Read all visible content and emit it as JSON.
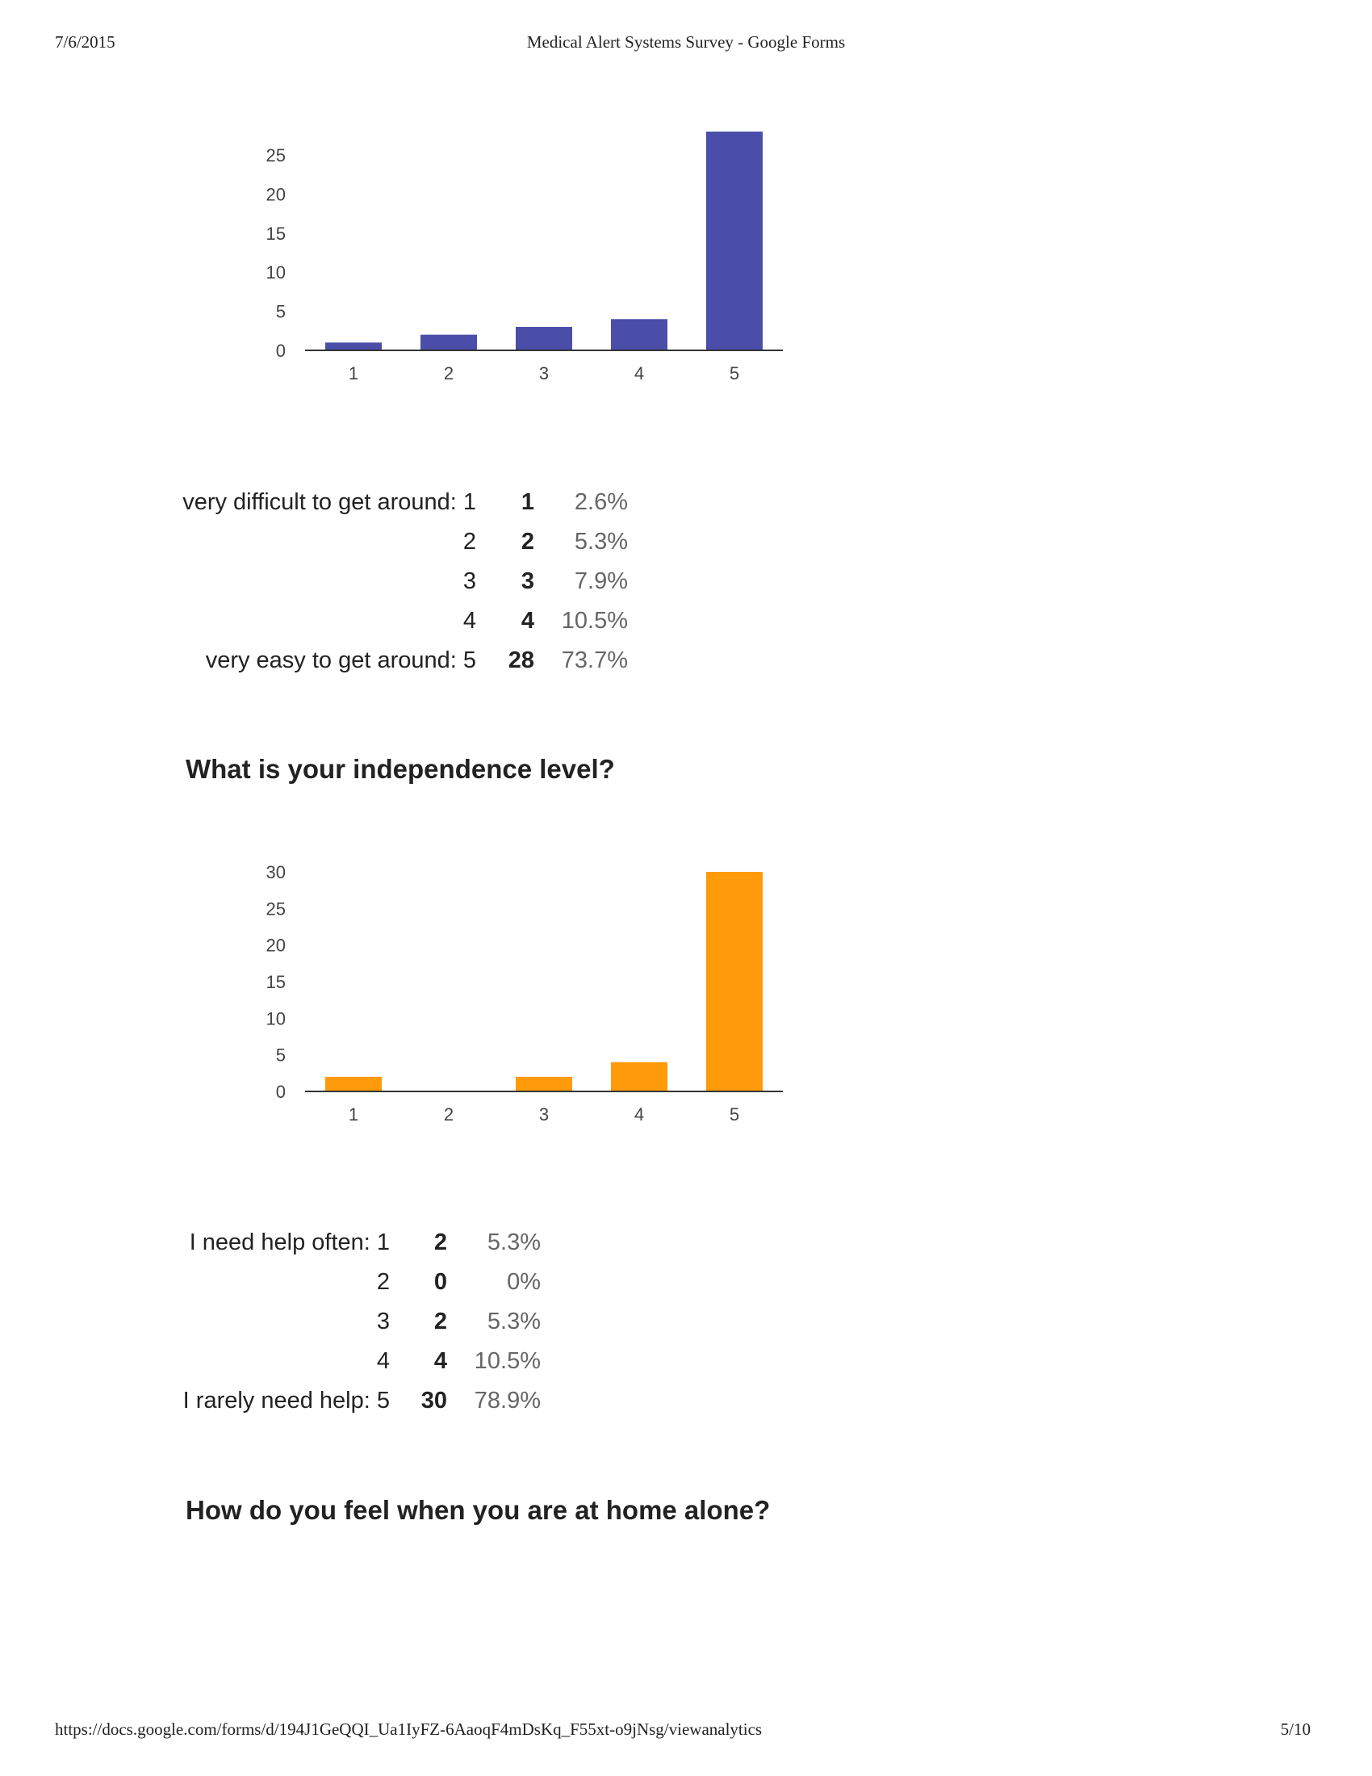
{
  "header": {
    "date": "7/6/2015",
    "title": "Medical Alert Systems Survey - Google Forms"
  },
  "footer": {
    "url": "https://docs.google.com/forms/d/194J1GeQQI_Ua1IyFZ-6AaoqF4mDsKq_F55xt-o9jNsg/viewanalytics",
    "page": "5/10"
  },
  "chart_data": [
    {
      "type": "bar",
      "title": "",
      "xlabel": "",
      "ylabel": "",
      "categories": [
        "1",
        "2",
        "3",
        "4",
        "5"
      ],
      "values": [
        1,
        2,
        3,
        4,
        28
      ],
      "ylim": [
        0,
        28
      ],
      "yticks": [
        0,
        5,
        10,
        15,
        20,
        25
      ],
      "color": "#4a4ea8",
      "grid": false,
      "legend": "none"
    },
    {
      "type": "bar",
      "title": "",
      "xlabel": "",
      "ylabel": "",
      "categories": [
        "1",
        "2",
        "3",
        "4",
        "5"
      ],
      "values": [
        2,
        0,
        2,
        4,
        30
      ],
      "ylim": [
        0,
        30
      ],
      "yticks": [
        0,
        5,
        10,
        15,
        20,
        25,
        30
      ],
      "color": "#ff9a0b",
      "grid": false,
      "legend": "none"
    }
  ],
  "tables": [
    {
      "rows": [
        {
          "label": "very difficult to get around: 1",
          "count": "1",
          "percent": "2.6%"
        },
        {
          "label": "2",
          "count": "2",
          "percent": "5.3%"
        },
        {
          "label": "3",
          "count": "3",
          "percent": "7.9%"
        },
        {
          "label": "4",
          "count": "4",
          "percent": "10.5%"
        },
        {
          "label": "very easy to get around: 5",
          "count": "28",
          "percent": "73.7%"
        }
      ]
    },
    {
      "rows": [
        {
          "label": "I need help often: 1",
          "count": "2",
          "percent": "5.3%"
        },
        {
          "label": "2",
          "count": "0",
          "percent": "0%"
        },
        {
          "label": "3",
          "count": "2",
          "percent": "5.3%"
        },
        {
          "label": "4",
          "count": "4",
          "percent": "10.5%"
        },
        {
          "label": "I rarely need help: 5",
          "count": "30",
          "percent": "78.9%"
        }
      ]
    }
  ],
  "questions": {
    "q1": "What is your independence level?",
    "q2": "How do you feel when you are at home alone?"
  }
}
